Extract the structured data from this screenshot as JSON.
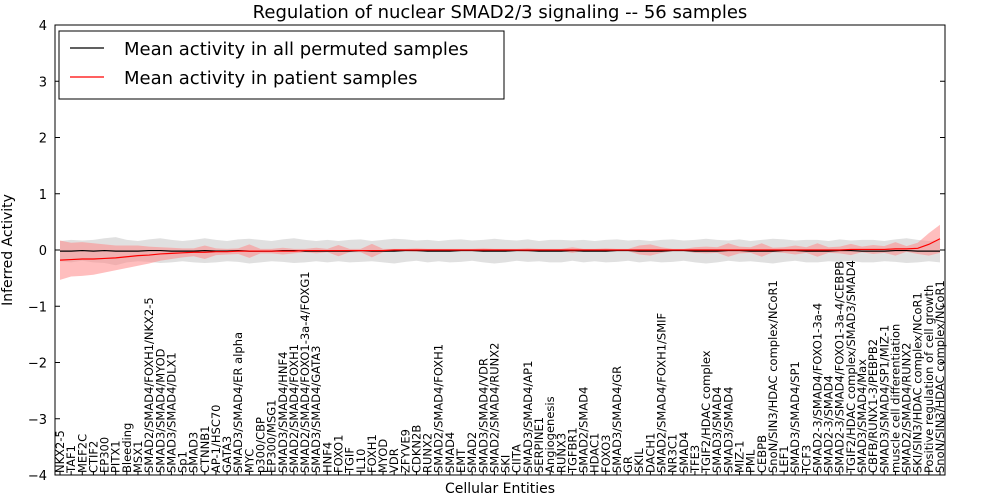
{
  "chart_data": {
    "type": "line",
    "title": "Regulation of nuclear SMAD2/3 signaling -- 56 samples",
    "xlabel": "Cellular Entities",
    "ylabel": "Inferred Activity",
    "ylim": [
      -4,
      4
    ],
    "yticks": [
      -4,
      -3,
      -2,
      -1,
      0,
      1,
      2,
      3,
      4
    ],
    "legend_position": "top-left",
    "grid": false,
    "series": [
      {
        "name": "Mean activity in all permuted samples",
        "color": "#000000",
        "band_color": "#bbbbbb",
        "values": [
          -0.02,
          -0.02,
          -0.01,
          -0.02,
          -0.01,
          -0.02,
          -0.02,
          -0.02,
          -0.01,
          -0.01,
          -0.02,
          -0.02,
          -0.02,
          -0.01,
          -0.02,
          -0.02,
          -0.01,
          -0.02,
          -0.02,
          -0.02,
          -0.01,
          -0.01,
          -0.02,
          -0.02,
          -0.02,
          -0.02,
          -0.02,
          -0.01,
          -0.02,
          -0.02,
          -0.02,
          -0.01,
          -0.01,
          -0.02,
          -0.02,
          -0.02,
          -0.01,
          -0.01,
          -0.02,
          -0.02,
          -0.02,
          -0.01,
          -0.01,
          -0.02,
          -0.02,
          -0.02,
          -0.01,
          -0.02,
          -0.02,
          -0.02,
          -0.01,
          -0.01,
          -0.02,
          -0.02,
          -0.02,
          -0.01,
          -0.01,
          -0.02,
          -0.02,
          -0.02,
          -0.01,
          -0.01,
          -0.02,
          -0.02,
          -0.02,
          -0.01,
          -0.01,
          -0.02,
          -0.02,
          -0.02,
          -0.01,
          -0.01,
          -0.02,
          -0.02,
          -0.02,
          -0.01,
          -0.01,
          -0.02,
          -0.02,
          -0.02
        ],
        "band": [
          0.18,
          0.2,
          0.18,
          0.2,
          0.22,
          0.25,
          0.2,
          0.18,
          0.2,
          0.22,
          0.2,
          0.18,
          0.2,
          0.22,
          0.2,
          0.18,
          0.2,
          0.22,
          0.2,
          0.18,
          0.2,
          0.22,
          0.2,
          0.18,
          0.2,
          0.18,
          0.2,
          0.2,
          0.18,
          0.2,
          0.22,
          0.2,
          0.18,
          0.2,
          0.18,
          0.2,
          0.2,
          0.18,
          0.2,
          0.22,
          0.2,
          0.18,
          0.2,
          0.18,
          0.2,
          0.2,
          0.18,
          0.2,
          0.18,
          0.2,
          0.2,
          0.18,
          0.2,
          0.18,
          0.2,
          0.2,
          0.18,
          0.2,
          0.22,
          0.2,
          0.18,
          0.2,
          0.18,
          0.2,
          0.22,
          0.2,
          0.18,
          0.2,
          0.2,
          0.18,
          0.2,
          0.18,
          0.2,
          0.2,
          0.18,
          0.2,
          0.22,
          0.2,
          0.18,
          0.2
        ]
      },
      {
        "name": "Mean activity in patient samples",
        "color": "#ff0000",
        "band_color": "#ff8888",
        "values": [
          -0.18,
          -0.17,
          -0.16,
          -0.16,
          -0.15,
          -0.14,
          -0.12,
          -0.1,
          -0.09,
          -0.07,
          -0.06,
          -0.05,
          -0.04,
          -0.04,
          -0.03,
          -0.03,
          -0.02,
          -0.02,
          -0.02,
          -0.02,
          -0.02,
          -0.02,
          -0.01,
          -0.01,
          -0.01,
          -0.01,
          -0.01,
          -0.01,
          -0.01,
          -0.01,
          0.0,
          0.0,
          0.0,
          0.0,
          0.0,
          0.0,
          0.0,
          0.0,
          0.0,
          0.0,
          0.0,
          0.0,
          0.0,
          0.0,
          0.0,
          0.0,
          0.0,
          0.0,
          0.0,
          0.0,
          0.0,
          0.0,
          0.0,
          0.0,
          0.0,
          0.0,
          0.0,
          0.0,
          0.0,
          0.0,
          0.0,
          0.0,
          0.0,
          0.0,
          0.0,
          0.0,
          0.0,
          0.0,
          0.0,
          0.0,
          0.0,
          0.01,
          0.01,
          0.01,
          0.01,
          0.02,
          0.02,
          0.03,
          0.1,
          0.2
        ],
        "band": [
          0.35,
          0.3,
          0.3,
          0.28,
          0.25,
          0.22,
          0.2,
          0.18,
          0.15,
          0.12,
          0.1,
          0.08,
          0.07,
          0.12,
          0.06,
          0.05,
          0.05,
          0.12,
          0.04,
          0.04,
          0.06,
          0.04,
          0.03,
          0.05,
          0.03,
          0.1,
          0.03,
          0.03,
          0.12,
          0.03,
          0.02,
          0.02,
          0.03,
          0.02,
          0.02,
          0.02,
          0.02,
          0.02,
          0.03,
          0.02,
          0.02,
          0.02,
          0.03,
          0.02,
          0.02,
          0.02,
          0.05,
          0.02,
          0.02,
          0.03,
          0.02,
          0.02,
          0.08,
          0.1,
          0.05,
          0.02,
          0.02,
          0.05,
          0.06,
          0.05,
          0.12,
          0.06,
          0.05,
          0.12,
          0.04,
          0.05,
          0.08,
          0.05,
          0.12,
          0.05,
          0.06,
          0.1,
          0.05,
          0.08,
          0.06,
          0.12,
          0.05,
          0.1,
          0.2,
          0.25
        ]
      }
    ],
    "categories": [
      "NKX2-5",
      "TAF1",
      "MEF2C",
      "CTIF2",
      "EP300",
      "PITX1",
      "Bleeding",
      "MSX1",
      "SMAD2/SMAD4/FOXH1/NKX2-5",
      "SMAD3/SMAD4/MYOD",
      "SMAD3/SMAD4/DLX1",
      "Sp1",
      "SMAD3",
      "CTNNB1",
      "AP-1/HSC70",
      "GATA3",
      "SMAD3/SMAD4/ER alpha",
      "MYC",
      "p300/CBP",
      "EP300/MSG1",
      "SMAD3/SMAD4/HNF4",
      "SMAD2/SMAD4/FOXH1",
      "SMAD2/SMAD4/FOXO1-3a-4/FOXG1",
      "SMAD3/SMAD4/GATA3",
      "HNF4",
      "FOXO1",
      "TGIF",
      "IL10",
      "FOXH1",
      "MYOD",
      "VDR",
      "ZFYVE9",
      "CDKN2B",
      "RUNX2",
      "SMAD2/SMAD4/FOXH1",
      "SMAD4",
      "EMT",
      "SMAD2",
      "SMAD3/SMAD4/VDR",
      "SMAD2/SMAD4/RUNX2",
      "SKI",
      "CIITA",
      "SMAD3/SMAD4/AP1",
      "SERPINE1",
      "Angiogenesis",
      "RUNX3",
      "TGFBR1",
      "SMAD2/SMAD4",
      "HDAC1",
      "FOXO3",
      "SMAD3/SMAD4/GR",
      "GR",
      "SKIL",
      "DACH1",
      "SMAD2/SMAD4/FOXH1/SMIF",
      "NR3C1",
      "SMAD4",
      "TFE3",
      "TGIF2/HDAC complex",
      "SMAD3/SMAD4",
      "SMAD3/SMAD4",
      "MIZ-1",
      "PML",
      "CEBPB",
      "SnoN/SIN3/HDAC complex/NCoR1",
      "LEF1",
      "SMAD3/SMAD4/SP1",
      "TCF3",
      "SMAD2-3/SMAD4/FOXO1-3a-4",
      "SMAD2-3/SMAD4",
      "SMAD2-3/SMAD4/FOXO1-3a-4/CEBPB",
      "TGIF2/HDAC complex/SMAD3/SMAD4",
      "SMAD3/SMAD4/Max",
      "CBFB/RUNX1-3/PEBPB2",
      "SMAD3/SMAD4/SP1/MIZ-1",
      "muscle cell differentiation",
      "SMAD2/SMAD4/RUNX2",
      "SKI/SIN3/HDAC complex/NCoR1",
      "Positive regulation of cell growth",
      "SnoN/SIN3/HDAC complex/NCoR1"
    ]
  }
}
